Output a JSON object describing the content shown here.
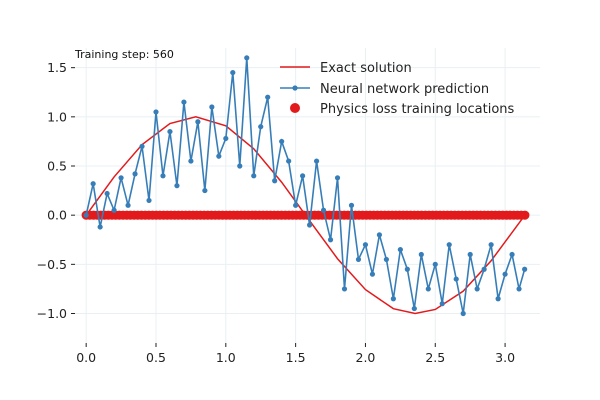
{
  "annotation": "Training step: 560",
  "legend": {
    "exact": "Exact solution",
    "nn": "Neural network prediction",
    "physics": "Physics loss training locations"
  },
  "colors": {
    "exact": "#e31a1c",
    "nn": "#377eb8",
    "physics": "#e31a1c",
    "grid": "#e8f0f4"
  },
  "chart_data": {
    "type": "line",
    "title": "",
    "xlabel": "",
    "ylabel": "",
    "xlim": [
      -0.08,
      3.25
    ],
    "ylim": [
      -1.3,
      1.7
    ],
    "xticks": [
      0.0,
      0.5,
      1.0,
      1.5,
      2.0,
      2.5,
      3.0
    ],
    "xtick_labels": [
      "0.0",
      "0.5",
      "1.0",
      "1.5",
      "2.0",
      "2.5",
      "3.0"
    ],
    "yticks": [
      -1.0,
      -0.5,
      0.0,
      0.5,
      1.0,
      1.5
    ],
    "ytick_labels": [
      "−1.0",
      "−0.5",
      "0.0",
      "0.5",
      "1.0",
      "1.5"
    ],
    "grid": true,
    "legend_position": "top-right",
    "series": [
      {
        "name": "Exact solution",
        "style": "line",
        "x": [
          0.0,
          0.2,
          0.4,
          0.6,
          0.785,
          1.0,
          1.2,
          1.4,
          1.571,
          1.8,
          2.0,
          2.2,
          2.356,
          2.5,
          2.7,
          2.9,
          3.1416
        ],
        "y": [
          0.0,
          0.389,
          0.717,
          0.932,
          1.0,
          0.909,
          0.675,
          0.335,
          0.0,
          -0.443,
          -0.757,
          -0.951,
          -1.0,
          -0.959,
          -0.773,
          -0.464,
          0.0
        ]
      },
      {
        "name": "Neural network prediction",
        "style": "line-markers",
        "x": [
          0.0,
          0.05,
          0.1,
          0.15,
          0.2,
          0.25,
          0.3,
          0.35,
          0.4,
          0.45,
          0.5,
          0.55,
          0.6,
          0.65,
          0.7,
          0.75,
          0.8,
          0.85,
          0.9,
          0.95,
          1.0,
          1.05,
          1.1,
          1.15,
          1.2,
          1.25,
          1.3,
          1.35,
          1.4,
          1.45,
          1.5,
          1.55,
          1.6,
          1.65,
          1.7,
          1.75,
          1.8,
          1.85,
          1.9,
          1.95,
          2.0,
          2.05,
          2.1,
          2.15,
          2.2,
          2.25,
          2.3,
          2.35,
          2.4,
          2.45,
          2.5,
          2.55,
          2.6,
          2.65,
          2.7,
          2.75,
          2.8,
          2.85,
          2.9,
          2.95,
          3.0,
          3.05,
          3.1,
          3.14
        ],
        "y": [
          0.0,
          0.32,
          -0.12,
          0.22,
          0.05,
          0.38,
          0.1,
          0.42,
          0.7,
          0.15,
          1.05,
          0.4,
          0.85,
          0.3,
          1.15,
          0.55,
          0.95,
          0.25,
          1.1,
          0.6,
          0.78,
          1.45,
          0.5,
          1.6,
          0.4,
          0.9,
          1.2,
          0.35,
          0.75,
          0.55,
          0.1,
          0.4,
          -0.1,
          0.55,
          0.05,
          -0.25,
          0.38,
          -0.75,
          0.1,
          -0.45,
          -0.3,
          -0.6,
          -0.2,
          -0.45,
          -0.85,
          -0.35,
          -0.55,
          -0.95,
          -0.4,
          -0.75,
          -0.5,
          -0.9,
          -0.3,
          -0.65,
          -1.0,
          -0.4,
          -0.75,
          -0.55,
          -0.3,
          -0.85,
          -0.6,
          -0.4,
          -0.75,
          -0.55
        ]
      },
      {
        "name": "Physics loss training locations",
        "style": "scatter",
        "x_min": 0.0,
        "x_max": 3.1416,
        "count": 120,
        "y": 0.0
      }
    ]
  }
}
